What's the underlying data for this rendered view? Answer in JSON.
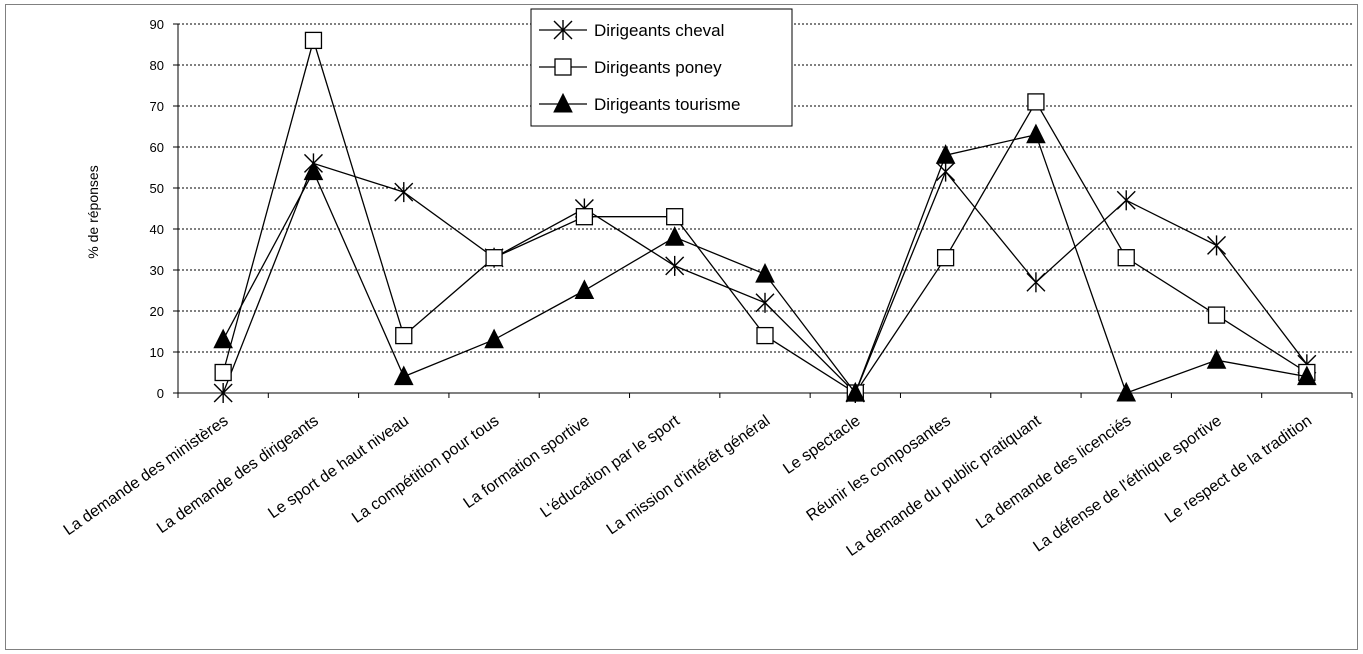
{
  "chart_data": {
    "type": "line",
    "ylabel": "% de réponses",
    "xlabel": "",
    "title": "",
    "ylim": [
      0,
      90
    ],
    "yticks": [
      0,
      10,
      20,
      30,
      40,
      50,
      60,
      70,
      80,
      90
    ],
    "grid": "horizontal dashed",
    "legend_position": "top-center",
    "categories": [
      "La demande des ministères",
      "La demande des dirigeants",
      "Le sport de haut niveau",
      "La compétition pour tous",
      "La formation sportive",
      "L'éducation par le sport",
      "La mission d'intérêt général",
      "Le spectacle",
      "Réunir les composantes",
      "La demande du public pratiquant",
      "La demande des licenciés",
      "La défense de l'éthique sportive",
      "Le respect de la tradition"
    ],
    "series": [
      {
        "name": "Dirigeants cheval",
        "marker": "star",
        "color": "#000000",
        "values": [
          0,
          56,
          49,
          33,
          45,
          31,
          22,
          0,
          54,
          27,
          47,
          36,
          7
        ]
      },
      {
        "name": "Dirigeants poney",
        "marker": "square",
        "color": "#000000",
        "values": [
          5,
          86,
          14,
          33,
          43,
          43,
          14,
          0,
          33,
          71,
          33,
          19,
          5
        ]
      },
      {
        "name": "Dirigeants tourisme",
        "marker": "triangle",
        "color": "#000000",
        "values": [
          13,
          54,
          4,
          13,
          25,
          38,
          29,
          0,
          58,
          63,
          0,
          8,
          4
        ]
      }
    ]
  }
}
